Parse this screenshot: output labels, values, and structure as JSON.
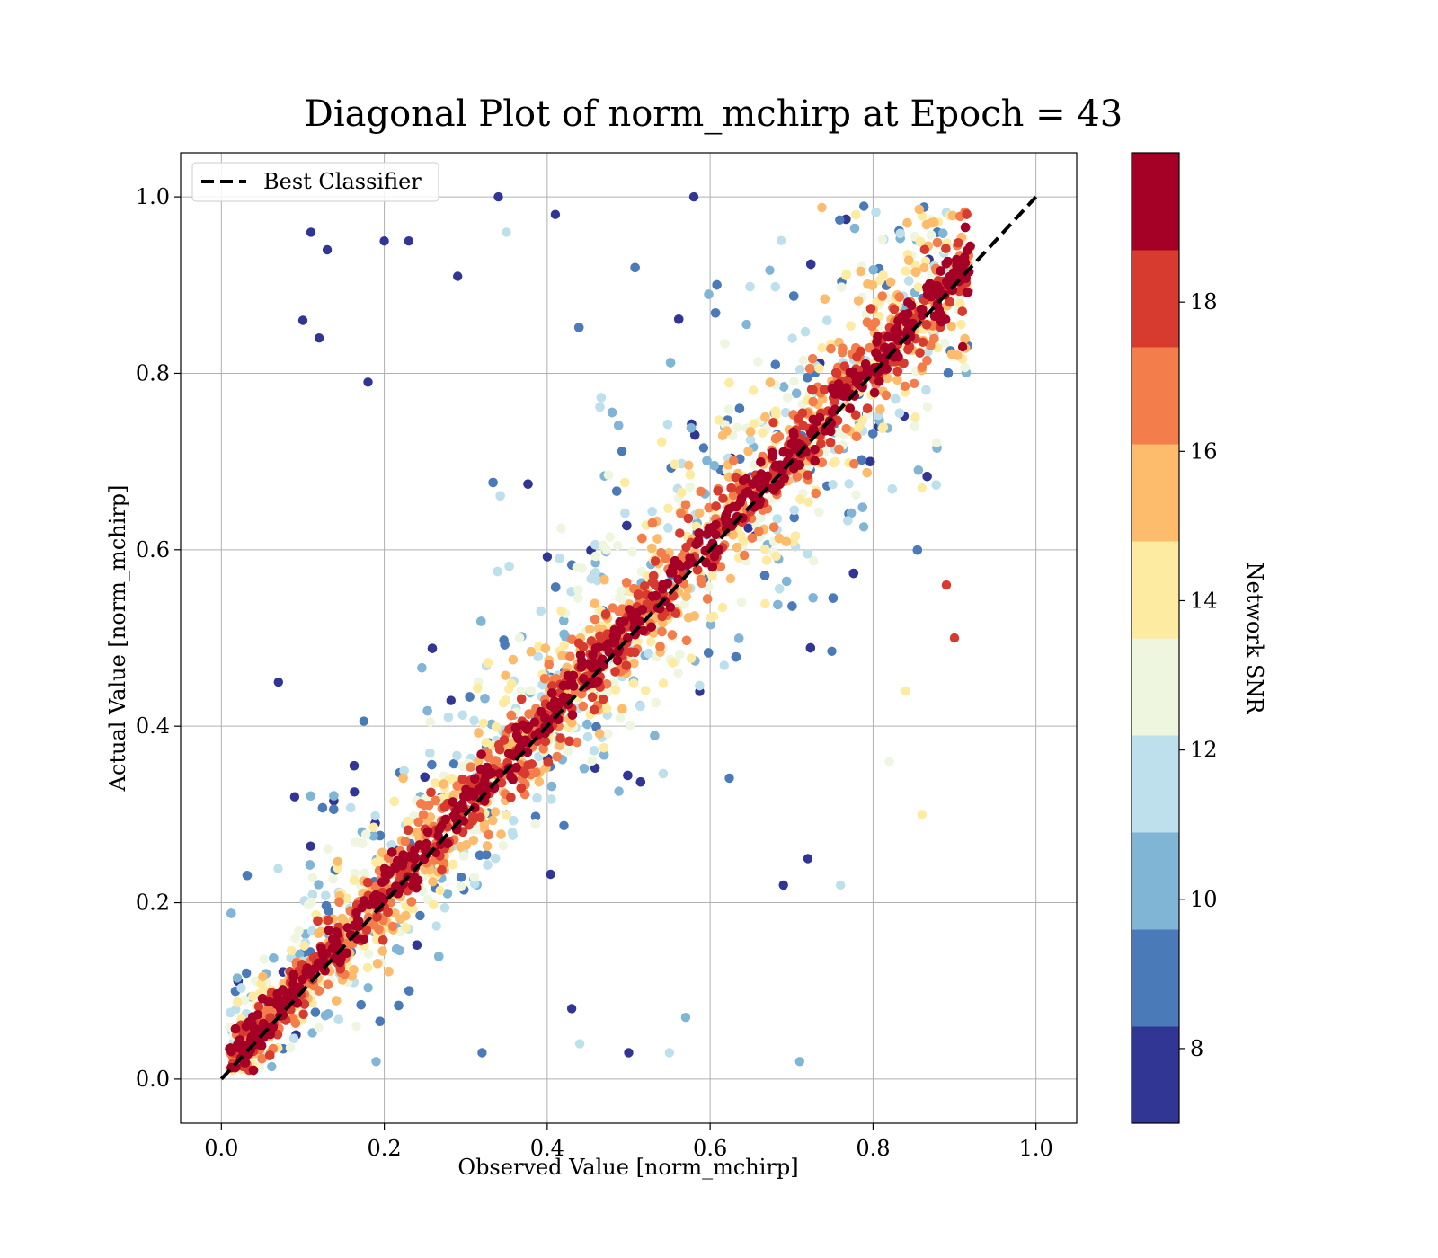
{
  "chart_data": {
    "type": "scatter",
    "title": "Diagonal Plot of norm_mchirp at Epoch = 43",
    "xlabel": "Observed Value [norm_mchirp]",
    "ylabel": "Actual Value [norm_mchirp]",
    "xlim": [
      -0.05,
      1.05
    ],
    "ylim": [
      -0.05,
      1.05
    ],
    "xticks": [
      "0.0",
      "0.2",
      "0.4",
      "0.6",
      "0.8",
      "1.0"
    ],
    "yticks": [
      "0.0",
      "0.2",
      "0.4",
      "0.6",
      "0.8",
      "1.0"
    ],
    "grid": true,
    "legend": {
      "placement": "top-left",
      "entries": [
        "Best Classifier"
      ]
    },
    "reference_line": {
      "name": "Best Classifier",
      "style": "dashed",
      "color": "#000000",
      "x": [
        0,
        1
      ],
      "y": [
        0,
        1
      ]
    },
    "colorbar": {
      "label": "Network SNR",
      "range": [
        7,
        20
      ],
      "ticks": [
        "8",
        "10",
        "12",
        "14",
        "16",
        "18"
      ],
      "tick_values": [
        8,
        10,
        12,
        14,
        16,
        18
      ],
      "colors": [
        "#313695",
        "#4575b4",
        "#74add1",
        "#abd9e9",
        "#e0f3f8",
        "#ffffbf",
        "#fee090",
        "#fdae61",
        "#f46d43",
        "#d73027",
        "#a50026"
      ],
      "bands": [
        "#313695",
        "#4a7ab8",
        "#80b5d6",
        "#bde0ec",
        "#eef6e0",
        "#feeba2",
        "#fdbb6c",
        "#f47d4c",
        "#d73a2e",
        "#a50026"
      ]
    },
    "points_note_free": true,
    "sample_points": [
      [
        0.11,
        0.96,
        7.5
      ],
      [
        0.13,
        0.94,
        7.5
      ],
      [
        0.34,
        1.0,
        7.5
      ],
      [
        0.35,
        0.96,
        11.5
      ],
      [
        0.2,
        0.95,
        7.5
      ],
      [
        0.23,
        0.95,
        7.5
      ],
      [
        0.1,
        0.86,
        7.5
      ],
      [
        0.12,
        0.84,
        7.5
      ],
      [
        0.29,
        0.91,
        7.5
      ],
      [
        0.41,
        0.98,
        7.5
      ],
      [
        0.58,
        1.0,
        7.5
      ],
      [
        0.18,
        0.79,
        7.5
      ],
      [
        0.86,
        0.3,
        13.5
      ],
      [
        0.71,
        0.02,
        10.5
      ],
      [
        0.55,
        0.03,
        11.5
      ],
      [
        0.76,
        0.22,
        11.5
      ],
      [
        0.9,
        0.5,
        18.5
      ],
      [
        0.91,
        0.83,
        19.5
      ],
      [
        0.89,
        0.56,
        17.5
      ],
      [
        0.86,
        0.67,
        14.5
      ],
      [
        0.72,
        0.25,
        7.5
      ],
      [
        0.69,
        0.22,
        7.5
      ],
      [
        0.57,
        0.07,
        10.5
      ],
      [
        0.5,
        0.03,
        7.5
      ],
      [
        0.32,
        0.03,
        8.5
      ],
      [
        0.43,
        0.08,
        7.5
      ],
      [
        0.44,
        0.04,
        11.5
      ],
      [
        0.19,
        0.02,
        10.5
      ],
      [
        0.82,
        0.36,
        12.5
      ],
      [
        0.84,
        0.44,
        13.5
      ],
      [
        0.07,
        0.45,
        7.5
      ],
      [
        0.09,
        0.32,
        7.5
      ]
    ]
  }
}
